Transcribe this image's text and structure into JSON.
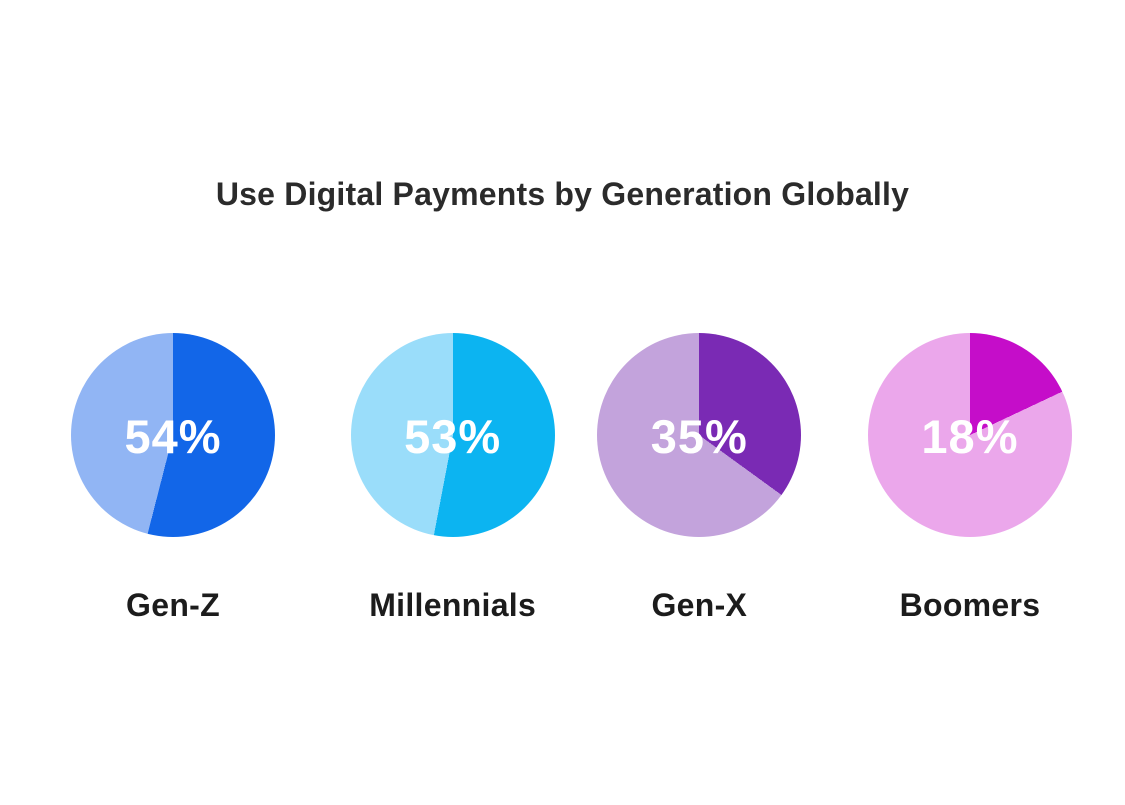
{
  "page": {
    "background_color": "#ffffff"
  },
  "chart_data": {
    "type": "pie",
    "title": "Use Digital Payments by Generation Globally",
    "subtitle": "",
    "unit": "%",
    "legend": false,
    "layout": "four pie charts in a row, slice starts at 12 o'clock going clockwise",
    "title_color": "#2b2b2b",
    "label_color": "#1c1c1c",
    "value_text_color": "#ffffff",
    "charts": [
      {
        "category": "Gen-Z",
        "value": 54,
        "value_label": "54%",
        "slice_color": "#1266e8",
        "remainder_color": "#91b5f4"
      },
      {
        "category": "Millennials",
        "value": 53,
        "value_label": "53%",
        "slice_color": "#0cb4f1",
        "remainder_color": "#9addfa"
      },
      {
        "category": "Gen-X",
        "value": 35,
        "value_label": "35%",
        "slice_color": "#7a2ab4",
        "remainder_color": "#c3a3dc"
      },
      {
        "category": "Boomers",
        "value": 18,
        "value_label": "18%",
        "slice_color": "#c50dc9",
        "remainder_color": "#eba7eb"
      }
    ]
  }
}
